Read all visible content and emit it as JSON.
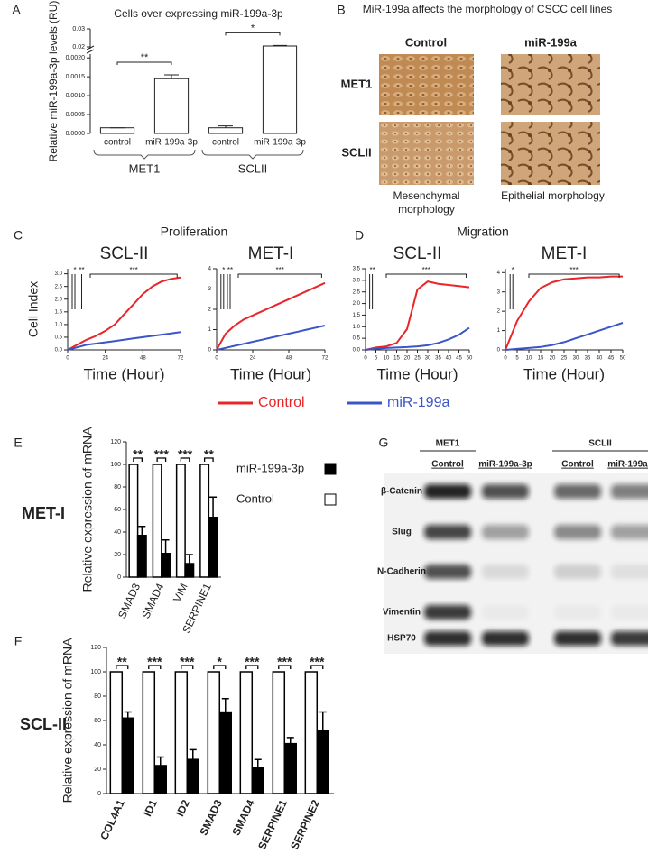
{
  "panel_labels": [
    "A",
    "B",
    "C",
    "D",
    "E",
    "F",
    "G"
  ],
  "chart_data": [
    {
      "type": "bar",
      "title": "Cells over  expressing miR-199a-3p",
      "y_label": "Relative miR-199a-3p levels (RU)",
      "categories": [
        "control",
        "miR-199a-3p",
        "control",
        "miR-199a-3p"
      ],
      "groups": [
        "MET1",
        "SCLII"
      ],
      "values": [
        0.00015,
        0.00145,
        0.00015,
        0.0205
      ],
      "errors": [
        0,
        0.0001,
        5e-05,
        0.0003
      ],
      "color": "#ffffff",
      "ylim": [
        0,
        0.03
      ],
      "ybreak": [
        0.0021,
        0.019
      ],
      "yticks": [
        {
          "value": 0,
          "label": "0.0000"
        },
        {
          "value": 0.0005,
          "label": "0.0005"
        },
        {
          "value": 0.001,
          "label": "0.0010"
        },
        {
          "value": 0.0015,
          "label": "0.0015"
        },
        {
          "value": 0.002,
          "label": "0.0020"
        },
        0.02,
        0.03
      ],
      "annotations": [
        "**",
        "*"
      ]
    },
    {
      "type": "line",
      "group": "Proliferation",
      "title": "SCL-II",
      "x_label": "Time (Hour)",
      "y_label": "Cell Index",
      "x": [
        0,
        6,
        12,
        18,
        24,
        30,
        36,
        42,
        48,
        54,
        60,
        66,
        72
      ],
      "series": [
        {
          "name": "Control",
          "color": "#e8262a",
          "values": [
            0,
            0.2,
            0.4,
            0.55,
            0.75,
            1.0,
            1.4,
            1.8,
            2.2,
            2.5,
            2.7,
            2.8,
            2.85
          ]
        },
        {
          "name": "miR-199a",
          "color": "#3a55c8",
          "values": [
            0,
            0.1,
            0.2,
            0.25,
            0.3,
            0.35,
            0.4,
            0.45,
            0.5,
            0.55,
            0.6,
            0.65,
            0.7
          ]
        }
      ],
      "xlim": [
        0,
        72
      ],
      "xticks": [
        0,
        24,
        48,
        72
      ],
      "ylim": [
        0,
        3.2
      ],
      "yticks": [
        {
          "value": 0,
          "label": "0.0"
        },
        {
          "value": 0.5,
          "label": "0.5"
        },
        {
          "value": 1,
          "label": "1.0"
        },
        {
          "value": 1.5,
          "label": "1.5"
        },
        {
          "value": 2,
          "label": "2.0"
        },
        {
          "value": 2.5,
          "label": "2.5"
        },
        {
          "value": 3,
          "label": "3.0"
        }
      ],
      "annotations": [
        "*",
        "**",
        "***"
      ]
    },
    {
      "type": "line",
      "title": "MET-I",
      "x_label": "Time (Hour)",
      "x": [
        0,
        6,
        12,
        18,
        24,
        30,
        36,
        42,
        48,
        54,
        60,
        66,
        72
      ],
      "series": [
        {
          "name": "Control",
          "color": "#e8262a",
          "values": [
            0,
            0.8,
            1.2,
            1.5,
            1.7,
            1.9,
            2.1,
            2.3,
            2.5,
            2.7,
            2.9,
            3.1,
            3.3
          ]
        },
        {
          "name": "miR-199a",
          "color": "#3a55c8",
          "values": [
            0,
            0.1,
            0.2,
            0.3,
            0.4,
            0.5,
            0.6,
            0.7,
            0.8,
            0.9,
            1.0,
            1.1,
            1.2
          ]
        }
      ],
      "xlim": [
        0,
        72
      ],
      "xticks": [
        0,
        24,
        48,
        72
      ],
      "ylim": [
        0,
        4
      ],
      "yticks": [
        0,
        1,
        2,
        3,
        4
      ],
      "annotations": [
        "*",
        "**",
        "***"
      ]
    },
    {
      "type": "line",
      "group": "Migration",
      "title": "SCL-II",
      "x_label": "Time (Hour)",
      "x": [
        0,
        5,
        10,
        15,
        20,
        25,
        30,
        35,
        40,
        45,
        50
      ],
      "series": [
        {
          "name": "Control",
          "color": "#e8262a",
          "values": [
            0,
            0.1,
            0.15,
            0.3,
            0.9,
            2.6,
            2.95,
            2.85,
            2.8,
            2.75,
            2.7
          ]
        },
        {
          "name": "miR-199a",
          "color": "#3a55c8",
          "values": [
            0,
            0.05,
            0.08,
            0.1,
            0.12,
            0.15,
            0.2,
            0.3,
            0.45,
            0.65,
            0.95
          ]
        }
      ],
      "xlim": [
        0,
        50
      ],
      "xticks": [
        0,
        5,
        10,
        15,
        20,
        25,
        30,
        35,
        40,
        45,
        50
      ],
      "ylim": [
        0,
        3.5
      ],
      "yticks": [
        {
          "value": 0,
          "label": "0.0"
        },
        {
          "value": 0.5,
          "label": "0.5"
        },
        {
          "value": 1,
          "label": "1.0"
        },
        {
          "value": 1.5,
          "label": "1.5"
        },
        {
          "value": 2,
          "label": "2.0"
        },
        {
          "value": 2.5,
          "label": "2.5"
        },
        {
          "value": 3,
          "label": "3.0"
        },
        {
          "value": 3.5,
          "label": "3.5"
        }
      ],
      "annotations": [
        "**",
        "***"
      ]
    },
    {
      "type": "line",
      "title": "MET-I",
      "x_label": "Time (Hour)",
      "x": [
        0,
        5,
        10,
        15,
        20,
        25,
        30,
        35,
        40,
        45,
        50
      ],
      "series": [
        {
          "name": "Control",
          "color": "#e8262a",
          "values": [
            0,
            1.5,
            2.5,
            3.2,
            3.5,
            3.65,
            3.7,
            3.75,
            3.75,
            3.8,
            3.8
          ]
        },
        {
          "name": "miR-199a",
          "color": "#3a55c8",
          "values": [
            0,
            0.05,
            0.1,
            0.15,
            0.25,
            0.4,
            0.6,
            0.8,
            1.0,
            1.2,
            1.4
          ]
        }
      ],
      "xlim": [
        0,
        50
      ],
      "xticks": [
        0,
        5,
        10,
        15,
        20,
        25,
        30,
        35,
        40,
        45,
        50
      ],
      "ylim": [
        0,
        4.2
      ],
      "yticks": [
        0,
        1,
        2,
        3,
        4
      ],
      "annotations": [
        "*",
        "***"
      ]
    },
    {
      "type": "grouped_bar",
      "side_label": "MET-I",
      "y_label": "Relative expression of mRNA",
      "categories": [
        "SMAD3",
        "SMAD4",
        "VIM",
        "SERPINE1"
      ],
      "series": [
        {
          "name": "miR-199a-3p",
          "color": "#000000",
          "values": [
            37,
            21,
            12,
            53
          ],
          "errors": [
            8,
            12,
            8,
            18
          ]
        },
        {
          "name": "Control",
          "color": "#ffffff",
          "values": [
            100,
            100,
            100,
            100
          ]
        }
      ],
      "ylim": [
        0,
        120
      ],
      "yticks": [
        0,
        20,
        40,
        60,
        80,
        100,
        120
      ],
      "annotations": [
        "**",
        "***",
        "***",
        "**"
      ],
      "legend": true
    },
    {
      "type": "grouped_bar",
      "side_label": "SCL-II",
      "y_label": "Relative expression of mRNA",
      "categories": [
        "COL4A1",
        "ID1",
        "ID2",
        "SMAD3",
        "SMAD4",
        "SERPINE1",
        "SERPINE2"
      ],
      "series": [
        {
          "name": "miR-199a-3p",
          "color": "#000000",
          "values": [
            62,
            23,
            28,
            67,
            21,
            41,
            52
          ],
          "errors": [
            5,
            7,
            8,
            11,
            7,
            5,
            15
          ]
        },
        {
          "name": "Control",
          "color": "#ffffff",
          "values": [
            100,
            100,
            100,
            100,
            100,
            100,
            100
          ]
        }
      ],
      "ylim": [
        0,
        120
      ],
      "yticks": [
        0,
        20,
        40,
        60,
        80,
        100,
        120
      ],
      "annotations": [
        "**",
        "***",
        "***",
        "*",
        "***",
        "***",
        "***"
      ],
      "legend": false
    }
  ],
  "morphology": {
    "title": "MiR-199a affects the morphology of CSCC cell lines",
    "columns": [
      "Control",
      "miR-199a"
    ],
    "rows": [
      "MET1",
      "SCLII"
    ],
    "captions": [
      "Mesenchymal morphology",
      "Epithelial morphology"
    ]
  },
  "blot": {
    "groups": [
      "MET1",
      "SCLII"
    ],
    "lanes": [
      "Control",
      "miR-199a-3p",
      "Control",
      "miR-199a-3p"
    ],
    "rows": [
      {
        "label": "β-Catenin",
        "intensities": [
          0.9,
          0.7,
          0.6,
          0.5
        ]
      },
      {
        "label": "Slug",
        "intensities": [
          0.75,
          0.35,
          0.45,
          0.35
        ]
      },
      {
        "label": "N-Cadherin",
        "intensities": [
          0.7,
          0.1,
          0.15,
          0.08
        ]
      },
      {
        "label": "Vimentin",
        "intensities": [
          0.8,
          0.03,
          0.03,
          0.03
        ]
      },
      {
        "label": "HSP70",
        "intensities": [
          0.85,
          0.85,
          0.85,
          0.8
        ]
      }
    ]
  }
}
